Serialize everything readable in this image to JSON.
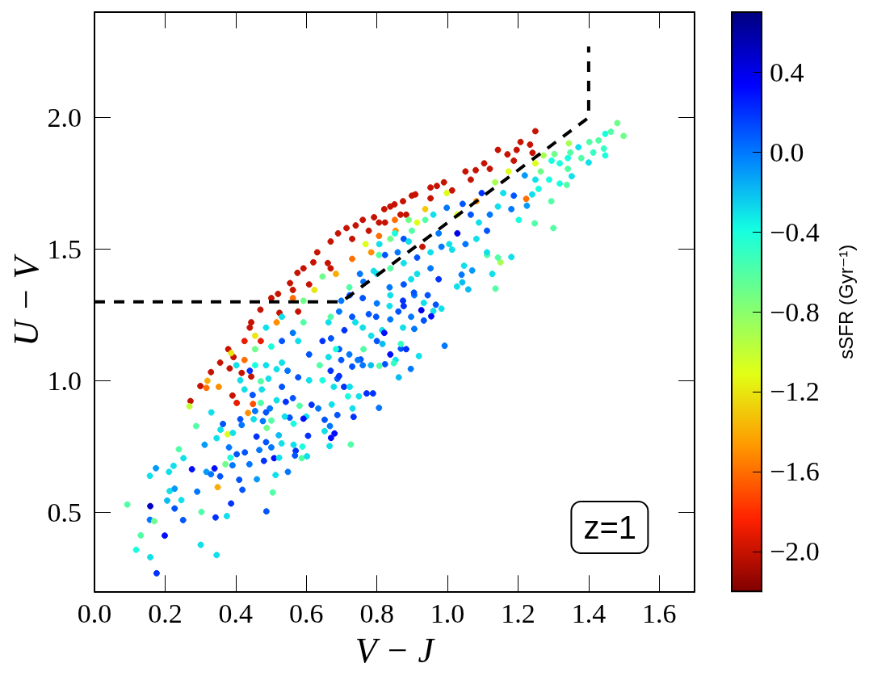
{
  "chart_data": {
    "type": "scatter",
    "xlabel": "V − J",
    "ylabel": "U − V",
    "clabel": "sSFR (Gyr⁻¹)",
    "annotations": [
      "z=1"
    ],
    "xlim": [
      0,
      1.7
    ],
    "ylim": [
      0.2,
      2.4
    ],
    "xticks": [
      {
        "value": 0,
        "label": "0.0"
      },
      {
        "value": 0.2,
        "label": "0.2"
      },
      {
        "value": 0.4,
        "label": "0.4"
      },
      {
        "value": 0.6,
        "label": "0.6"
      },
      {
        "value": 0.8,
        "label": "0.8"
      },
      {
        "value": 1.0,
        "label": "1.0"
      },
      {
        "value": 1.2,
        "label": "1.2"
      },
      {
        "value": 1.4,
        "label": "1.4"
      },
      {
        "value": 1.6,
        "label": "1.6"
      }
    ],
    "yticks": [
      {
        "value": 0.5,
        "label": "0.5"
      },
      {
        "value": 1.0,
        "label": "1.0"
      },
      {
        "value": 1.5,
        "label": "1.5"
      },
      {
        "value": 2.0,
        "label": "2.0"
      }
    ],
    "clim": [
      -2.2,
      0.7
    ],
    "cticks": [
      {
        "value": -2.0,
        "label": "−2.0"
      },
      {
        "value": -1.6,
        "label": "−1.6"
      },
      {
        "value": -1.2,
        "label": "−1.2"
      },
      {
        "value": -0.8,
        "label": "−0.8"
      },
      {
        "value": -0.4,
        "label": "−0.4"
      },
      {
        "value": 0,
        "label": "0.0"
      },
      {
        "value": 0.4,
        "label": "0.4"
      }
    ],
    "marker": "circle",
    "series": [
      {
        "x": [
          0.33,
          0.379,
          0.444,
          0.501,
          0.554,
          0.592,
          0.631,
          0.669,
          0.714,
          0.76,
          0.821,
          0.874,
          0.909,
          0.524,
          0.608,
          0.661,
          0.73,
          0.806,
          0.867,
          0.44,
          0.394,
          0.356,
          1.249,
          1.207,
          1.234,
          1.196,
          1.143,
          1.104,
          1.051,
          0.99,
          0.952,
          0.899,
          0.838,
          0.792,
          1.188,
          1.12,
          1.066,
          1.013,
          0.952,
          0.883,
          0.823,
          0.777,
          1.241,
          0.272,
          0.417,
          0.383,
          0.391,
          0.444,
          0.403,
          0.449,
          0.929,
          0.669,
          0.471,
          0.425,
          0.577,
          0.562,
          0.47,
          0.575,
          0.69,
          0.85,
          0.97,
          1.08,
          1.17,
          0.62,
          0.74,
          0.52,
          0.3,
          0.317,
          0.32,
          0.352,
          0.435,
          0.269,
          0.349,
          0.377,
          1.249,
          1.223,
          1.344,
          1.272,
          1.15,
          0.914,
          0.853,
          0.784,
          1.028,
          1.082,
          1.135,
          1.173,
          0.998,
          0.937,
          0.851,
          0.806,
          0.768,
          0.73,
          0.684,
          0.623,
          0.562,
          0.516,
          0.425,
          0.455,
          0.387,
          0.093,
          0.118,
          0.131,
          0.158,
          0.176,
          0.158,
          0.157,
          0.169,
          0.199,
          0.157,
          0.174,
          0.206,
          0.213,
          0.227,
          0.227,
          0.246,
          0.251,
          0.211,
          0.224,
          0.252,
          0.239,
          0.288,
          0.276,
          0.291,
          0.303,
          0.301,
          0.312,
          0.331,
          0.317,
          0.33,
          0.343,
          0.346,
          0.34,
          0.356,
          0.375,
          0.387,
          0.41,
          0.419,
          0.371,
          0.391,
          0.385,
          0.381,
          0.346,
          0.357,
          0.364,
          0.392,
          0.403,
          0.417,
          0.413,
          0.426,
          0.439,
          0.451,
          0.459,
          0.46,
          0.467,
          0.48,
          0.487,
          0.488,
          0.477,
          0.486,
          0.501,
          0.509,
          0.513,
          0.505,
          0.522,
          0.53,
          0.523,
          0.548,
          0.564,
          0.57,
          0.568,
          0.587,
          0.589,
          0.602,
          0.605,
          0.652,
          0.667,
          0.67,
          0.68,
          0.666,
          0.726,
          0.688,
          0.734,
          0.806,
          0.789,
          0.771,
          0.749,
          0.862,
          0.896,
          0.919,
          0.853,
          0.823,
          0.783,
          0.807,
          0.76,
          0.754,
          0.718,
          0.707,
          0.688,
          0.672,
          0.652,
          0.634,
          0.615,
          0.6,
          0.592,
          0.564,
          0.553,
          0.539,
          0.542,
          0.562,
          0.581,
          0.516,
          0.497,
          0.486,
          0.501,
          0.471,
          0.474,
          0.455,
          0.448,
          0.425,
          0.413,
          0.471,
          0.493,
          0.531,
          0.577,
          0.608,
          0.646,
          0.669,
          0.638,
          0.547,
          0.516,
          0.486,
          0.455,
          0.44,
          0.699,
          0.73,
          1.181,
          1.143,
          1.127,
          1.136,
          1.059,
          1.07,
          1.042,
          1.027,
          1.04,
          1.112,
          1.047,
          0.992,
          0.983,
          0.967,
          0.96,
          0.954,
          0.926,
          0.933,
          0.906,
          0.868,
          0.883,
          0.838,
          0.848,
          0.816,
          0.868,
          0.975,
          0.944,
          0.933,
          0.906,
          0.876,
          0.861,
          0.838,
          0.815,
          0.8,
          0.784,
          0.762,
          0.746,
          0.693,
          0.678,
          0.723,
          0.731,
          0.762,
          0.8,
          0.838,
          0.876,
          0.914,
          0.952,
          0.983,
          1.013,
          0.723,
          0.693,
          0.663,
          0.67,
          0.708,
          0.739,
          0.777,
          0.8,
          0.838,
          0.876,
          0.914,
          0.952,
          0.693,
          0.663,
          1.481,
          1.499,
          1.463,
          1.447,
          1.428,
          1.402,
          1.443,
          1.413,
          1.447,
          1.4,
          1.371,
          1.348,
          1.379,
          1.341,
          1.303,
          1.318,
          1.341,
          1.352,
          1.318,
          1.338,
          1.295,
          1.264,
          1.288,
          1.249,
          1.219,
          1.225,
          1.24,
          1.258,
          1.294,
          1.247,
          1.3,
          1.202,
          1.181,
          1.188,
          1.158,
          1.143,
          1.12,
          1.112,
          1.089,
          1.066,
          1.082,
          1.028,
          1.051,
          1.005,
          1.112,
          1.043,
          0.998,
          0.96,
          0.937,
          0.899,
          0.876,
          0.838,
          0.807,
          0.823,
          0.975,
          1.097,
          0.89,
          0.851,
          0.89,
          0.859,
          0.806,
          0.752,
          0.791,
          0.897,
          0.836,
          0.76,
          0.722,
          0.646,
          0.592,
          0.531,
          0.486,
          0.455,
          0.501,
          0.531,
          0.562,
          0.592,
          0.577,
          0.608,
          0.646,
          0.669,
          0.699,
          0.73,
          0.76,
          0.798,
          0.836,
          0.874,
          0.905,
          0.722,
          0.684,
          0.821,
          0.874,
          0.897,
          0.531,
          0.402
        ],
        "values": [
          1.033,
          1.12,
          1.222,
          1.314,
          1.371,
          1.427,
          1.488,
          1.529,
          1.58,
          1.611,
          1.652,
          1.682,
          1.708,
          1.258,
          1.366,
          1.447,
          1.539,
          1.601,
          1.631,
          1.202,
          1.09,
          1.069,
          1.948,
          1.907,
          1.897,
          1.877,
          1.877,
          1.826,
          1.795,
          1.754,
          1.734,
          1.703,
          1.662,
          1.621,
          1.836,
          1.805,
          1.764,
          1.723,
          1.693,
          1.631,
          1.601,
          1.57,
          1.866,
          0.923,
          1.03,
          1.047,
          0.944,
          1.016,
          0.916,
          0.912,
          1.509,
          1.427,
          1.151,
          1.151,
          1.263,
          1.345,
          1.27,
          1.41,
          1.56,
          1.67,
          1.74,
          1.8,
          1.86,
          1.45,
          1.59,
          1.33,
          0.98,
          0.973,
          1.0,
          0.977,
          0.878,
          0.903,
          0.596,
          0.797,
          1.826,
          1.691,
          1.902,
          1.856,
          1.45,
          1.601,
          1.57,
          1.488,
          1.631,
          1.682,
          1.754,
          1.795,
          1.713,
          1.652,
          1.611,
          1.55,
          1.519,
          1.463,
          1.406,
          1.345,
          1.314,
          1.222,
          1.079,
          1.171,
          1.105,
          0.53,
          0.358,
          0.413,
          0.33,
          0.269,
          0.524,
          0.472,
          0.467,
          0.412,
          0.639,
          0.668,
          0.545,
          0.581,
          0.59,
          0.515,
          0.547,
          0.471,
          0.654,
          0.677,
          0.706,
          0.74,
          0.828,
          0.664,
          0.579,
          0.502,
          0.377,
          0.757,
          0.88,
          0.654,
          0.645,
          0.481,
          0.338,
          0.667,
          0.637,
          0.486,
          0.534,
          0.624,
          0.586,
          0.683,
          0.679,
          0.708,
          0.747,
          0.782,
          0.814,
          0.836,
          0.802,
          0.721,
          0.832,
          0.854,
          0.728,
          0.683,
          0.854,
          0.788,
          0.626,
          0.737,
          0.696,
          0.504,
          0.821,
          0.847,
          0.767,
          0.747,
          0.706,
          0.642,
          0.576,
          0.793,
          0.762,
          0.708,
          0.654,
          0.757,
          0.734,
          0.716,
          0.706,
          0.75,
          0.713,
          0.791,
          0.809,
          0.828,
          0.783,
          0.8,
          0.752,
          0.758,
          0.87,
          0.863,
          0.897,
          0.952,
          0.952,
          0.941,
          1.013,
          1.045,
          1.094,
          1.079,
          1.063,
          1.059,
          1.057,
          1.059,
          1.081,
          0.941,
          0.977,
          1.008,
          0.91,
          0.852,
          0.895,
          0.909,
          0.864,
          0.856,
          0.837,
          0.86,
          0.864,
          0.92,
          0.934,
          0.905,
          0.926,
          0.895,
          0.88,
          0.849,
          0.916,
          0.967,
          0.885,
          0.946,
          0.967,
          1.002,
          0.998,
          1.008,
          0.977,
          1.013,
          1.002,
          1.002,
          1.038,
          1.059,
          1.038,
          1.044,
          1.059,
          1.059,
          1.038,
          1.079,
          1.054,
          1.47,
          1.468,
          1.406,
          1.35,
          1.347,
          1.419,
          1.374,
          1.358,
          1.403,
          1.478,
          1.437,
          1.133,
          1.274,
          1.289,
          1.265,
          1.245,
          1.268,
          1.229,
          1.197,
          1.122,
          1.12,
          1.1,
          1.067,
          1.14,
          1.14,
          1.386,
          1.325,
          1.296,
          1.325,
          1.284,
          1.263,
          1.233,
          1.192,
          1.151,
          1.171,
          1.12,
          1.079,
          1.018,
          0.977,
          0.977,
          0.895,
          1.376,
          1.406,
          1.427,
          1.447,
          1.468,
          1.488,
          1.509,
          1.498,
          1.325,
          1.263,
          1.222,
          1.161,
          1.192,
          1.222,
          1.253,
          1.294,
          1.325,
          1.366,
          1.406,
          1.427,
          1.12,
          1.09,
          1.979,
          1.93,
          1.946,
          1.938,
          1.913,
          1.907,
          1.882,
          1.867,
          1.856,
          1.829,
          1.887,
          1.867,
          1.846,
          1.846,
          1.861,
          1.826,
          1.805,
          1.777,
          1.749,
          1.744,
          1.836,
          1.795,
          1.764,
          1.764,
          1.78,
          1.665,
          1.708,
          1.729,
          1.682,
          1.598,
          1.58,
          1.611,
          1.652,
          1.703,
          1.713,
          1.662,
          1.631,
          1.57,
          1.601,
          1.631,
          1.539,
          1.56,
          1.519,
          1.519,
          1.488,
          1.672,
          1.657,
          1.631,
          1.611,
          1.57,
          1.539,
          1.539,
          1.519,
          1.478,
          1.56,
          1.713,
          1.611,
          1.56,
          1.529,
          1.488,
          1.478,
          1.406,
          1.417,
          1.386,
          1.355,
          1.314,
          1.355,
          1.396,
          1.304,
          1.243,
          1.202,
          1.12,
          1.13,
          1.151,
          1.182,
          1.222,
          1.151,
          1.1,
          1.151,
          1.243,
          1.304,
          1.243,
          1.202,
          1.243,
          1.284,
          1.304,
          1.335,
          1.1,
          1.12,
          1.182,
          1.202,
          1.243,
          1.069,
          1.059
        ],
        "cvalues": [
          -2.0,
          -2.0,
          -2.0,
          -2.0,
          -2.0,
          -2.0,
          -2.0,
          -2.0,
          -2.0,
          -2.0,
          -2.0,
          -2.0,
          -2.0,
          -2.0,
          -2.0,
          -2.0,
          -2.0,
          -2.0,
          -2.0,
          -2.0,
          -2.0,
          -2.0,
          -2.0,
          -2.0,
          -2.0,
          -2.0,
          -2.0,
          -2.0,
          -2.0,
          -2.0,
          -2.0,
          -2.0,
          -2.0,
          -2.0,
          -2.0,
          -2.0,
          -2.0,
          -2.0,
          -2.0,
          -2.0,
          -2.0,
          -2.0,
          -2.0,
          -2.0,
          -2.0,
          -2.0,
          -2.0,
          -2.0,
          -1.9,
          -1.7,
          -2.0,
          -2.0,
          -1.9,
          -1.9,
          -2.0,
          -2.0,
          -2.0,
          -2.0,
          -2.0,
          -2.0,
          -2.0,
          -2.0,
          -2.0,
          -2.0,
          -2.0,
          -2.0,
          -2.0,
          -1.6,
          -1.4,
          -1.5,
          -1.5,
          -1.0,
          -1.4,
          -1.1,
          -1.1,
          -1.6,
          -0.9,
          -0.9,
          -0.9,
          -1.1,
          -1.5,
          -1.5,
          -1.1,
          -1.5,
          -0.9,
          -1.1,
          -1.1,
          -1.3,
          -1.6,
          -1.6,
          -1.1,
          -1.6,
          -1.4,
          -1.2,
          -1.6,
          -1.5,
          -1.6,
          -1.2,
          -1.2,
          -0.6,
          -0.4,
          -0.6,
          -0.3,
          0.2,
          0.5,
          0.0,
          -0.7,
          0.3,
          -0.3,
          -0.1,
          -0.2,
          -0.3,
          -0.1,
          0.1,
          -0.3,
          0.1,
          -0.3,
          -0.3,
          -0.3,
          -0.6,
          -0.6,
          0.3,
          0.0,
          -0.6,
          -0.3,
          -0.1,
          -0.3,
          -0.1,
          0.0,
          0.2,
          -0.3,
          0.3,
          0.1,
          -0.3,
          0.2,
          0.1,
          0.1,
          -0.7,
          0.0,
          -0.4,
          0.0,
          -0.3,
          -0.3,
          0.1,
          -0.3,
          0.1,
          0.0,
          0.1,
          0.1,
          0.0,
          -0.3,
          0.2,
          -0.1,
          0.0,
          0.2,
          0.1,
          -0.7,
          0.0,
          0.1,
          0.0,
          0.3,
          -0.3,
          -0.6,
          -0.2,
          -0.3,
          -0.3,
          0.0,
          -0.3,
          0.2,
          0.1,
          -0.6,
          -0.4,
          -0.3,
          0.2,
          -0.3,
          0.0,
          0.3,
          0.3,
          -0.3,
          -0.6,
          0.1,
          0.2,
          0.0,
          0.2,
          0.2,
          -0.3,
          -0.2,
          0.0,
          -0.3,
          -0.3,
          0.1,
          -0.2,
          -0.6,
          0.0,
          0.1,
          -0.4,
          0.2,
          0.1,
          -0.3,
          0.1,
          0.0,
          0.2,
          -0.3,
          0.3,
          -0.4,
          0.1,
          -0.3,
          0.2,
          0.1,
          -0.6,
          -0.3,
          0.0,
          0.1,
          -0.6,
          -0.6,
          -0.3,
          0.0,
          0.1,
          -0.3,
          -0.3,
          -0.6,
          -0.3,
          0.1,
          0.1,
          -0.3,
          -0.4,
          0.2,
          -0.6,
          0.0,
          -0.3,
          -0.3,
          -0.4,
          0.2,
          0.1,
          0.1,
          -0.3,
          -0.6,
          -0.3,
          -0.6,
          -0.2,
          -0.1,
          -0.2,
          -0.3,
          0.0,
          -0.6,
          -0.3,
          0.0,
          -0.3,
          0.1,
          -0.3,
          0.3,
          0.4,
          0.1,
          0.0,
          0.1,
          0.2,
          0.3,
          -0.5,
          -0.2,
          -0.5,
          0.2,
          0.1,
          -0.3,
          0.0,
          0.2,
          0.1,
          0.0,
          -0.3,
          0.1,
          -0.3,
          -0.6,
          0.0,
          0.2,
          -0.3,
          -0.3,
          -0.3,
          0.0,
          -0.3,
          -0.6,
          -0.3,
          0.1,
          -0.3,
          0.0,
          -0.3,
          0.1,
          0.0,
          -0.3,
          0.1,
          0.2,
          -0.3,
          0.1,
          0.0,
          -0.3,
          0.1,
          -0.3,
          0.0,
          0.1,
          -0.3,
          -0.7,
          -0.7,
          -0.6,
          -0.4,
          -0.6,
          -0.6,
          -0.5,
          -0.5,
          -0.4,
          -0.3,
          -0.3,
          -0.6,
          -0.6,
          -0.4,
          -0.7,
          -0.4,
          -0.6,
          -0.3,
          -0.4,
          -0.6,
          -0.4,
          -0.7,
          -0.4,
          -0.3,
          -0.1,
          -0.1,
          -0.3,
          -0.4,
          -0.6,
          -0.6,
          -0.6,
          -0.4,
          0.0,
          0.1,
          -0.3,
          -0.3,
          0.0,
          0.1,
          -0.3,
          0.1,
          -0.3,
          0.4,
          0.0,
          -0.3,
          -0.3,
          0.1,
          0.0,
          -0.3,
          -0.6,
          -0.6,
          0.1,
          -0.7,
          -0.3,
          0.1,
          0.0,
          0.2,
          -0.7,
          -0.4,
          -0.3,
          0.0,
          -0.6,
          0.0,
          -0.3,
          -0.3,
          0.0,
          0.1,
          -0.6,
          -0.7,
          -0.7,
          -0.3,
          -0.3,
          -0.7,
          -0.4,
          0.1,
          0.0,
          -0.6,
          -0.3,
          0.1,
          0.2,
          -0.6,
          0.0,
          0.1,
          -0.3,
          0.1,
          -0.3,
          0.2,
          0.1,
          0.0,
          -0.4,
          0.3,
          -0.3,
          0.0,
          -0.3,
          -0.3
        ],
        "colors": [
          "#c61200",
          "#c61200",
          "#c61200",
          "#c61200",
          "#c61200",
          "#c61200",
          "#c61200",
          "#c61200",
          "#c61200",
          "#c61200",
          "#c61200",
          "#c61200",
          "#c61200",
          "#c61200",
          "#c61200",
          "#c61200",
          "#c61200",
          "#c61200",
          "#c61200",
          "#c61200",
          "#c61200",
          "#c61200",
          "#c61200",
          "#c61200",
          "#c61200",
          "#c61200",
          "#c61200",
          "#c61200",
          "#c61200",
          "#c61200",
          "#c61200",
          "#c61200",
          "#c61200",
          "#c61200",
          "#c61200",
          "#c61200",
          "#c61200",
          "#c61200",
          "#c61200",
          "#c61200",
          "#c61200",
          "#c61200",
          "#c61200",
          "#c61200",
          "#c61200",
          "#c61200",
          "#c61200",
          "#c61200",
          "#e91b00",
          "#ff4e00",
          "#c61200",
          "#c61200",
          "#e91b00",
          "#e91b00",
          "#c61200",
          "#c61200",
          "#c61200",
          "#c61200",
          "#c61200",
          "#c61200",
          "#c61200",
          "#c61200",
          "#c61200",
          "#c61200",
          "#c61200",
          "#c61200",
          "#c61200",
          "#ff6e00",
          "#f9ad04",
          "#ff8f00",
          "#ff8f00",
          "#c2ff35",
          "#f9ad04",
          "#deff19",
          "#deff19",
          "#ff6e00",
          "#a6ff51",
          "#a6ff51",
          "#a6ff51",
          "#deff19",
          "#ff8f00",
          "#ff8f00",
          "#deff19",
          "#ff8f00",
          "#a6ff51",
          "#deff19",
          "#deff19",
          "#f1c90a",
          "#ff6e00",
          "#ff6e00",
          "#deff19",
          "#ff6e00",
          "#f9ad04",
          "#e9e610",
          "#ff6e00",
          "#ff8f00",
          "#ff6e00",
          "#e9e610",
          "#e9e610",
          "#50ffa6",
          "#18ffde",
          "#50ffa6",
          "#0fe0e9",
          "#0031ff",
          "#0000c6",
          "#0077ff",
          "#6dff89",
          "#000dff",
          "#0fe0e9",
          "#049af9",
          "#0abdf1",
          "#0fe0e9",
          "#049af9",
          "#0054ff",
          "#0fe0e9",
          "#0054ff",
          "#0fe0e9",
          "#0fe0e9",
          "#0fe0e9",
          "#50ffa6",
          "#50ffa6",
          "#000dff",
          "#0077ff",
          "#50ffa6",
          "#0fe0e9",
          "#049af9",
          "#0fe0e9",
          "#049af9",
          "#0077ff",
          "#0031ff",
          "#0fe0e9",
          "#000dff",
          "#0054ff",
          "#0fe0e9",
          "#0031ff",
          "#0054ff",
          "#0054ff",
          "#6dff89",
          "#0077ff",
          "#18ffde",
          "#0077ff",
          "#0fe0e9",
          "#0fe0e9",
          "#0054ff",
          "#0fe0e9",
          "#0054ff",
          "#0077ff",
          "#0054ff",
          "#0054ff",
          "#0077ff",
          "#0fe0e9",
          "#0031ff",
          "#049af9",
          "#0077ff",
          "#0031ff",
          "#0054ff",
          "#6dff89",
          "#0077ff",
          "#0054ff",
          "#0077ff",
          "#000dff",
          "#0fe0e9",
          "#50ffa6",
          "#0abdf1",
          "#0fe0e9",
          "#0fe0e9",
          "#0077ff",
          "#0fe0e9",
          "#0031ff",
          "#0054ff",
          "#50ffa6",
          "#18ffde",
          "#0fe0e9",
          "#0031ff",
          "#0fe0e9",
          "#0077ff",
          "#000dff",
          "#000dff",
          "#0fe0e9",
          "#50ffa6",
          "#0054ff",
          "#0031ff",
          "#0077ff",
          "#0031ff",
          "#0031ff",
          "#0fe0e9",
          "#0abdf1",
          "#0077ff",
          "#0fe0e9",
          "#0fe0e9",
          "#0054ff",
          "#0abdf1",
          "#50ffa6",
          "#0077ff",
          "#0054ff",
          "#18ffde",
          "#0031ff",
          "#0054ff",
          "#0fe0e9",
          "#0054ff",
          "#0077ff",
          "#0031ff",
          "#0fe0e9",
          "#000dff",
          "#18ffde",
          "#0054ff",
          "#0fe0e9",
          "#0031ff",
          "#0054ff",
          "#50ffa6",
          "#0fe0e9",
          "#0077ff",
          "#0054ff",
          "#50ffa6",
          "#50ffa6",
          "#0fe0e9",
          "#0077ff",
          "#0054ff",
          "#0fe0e9",
          "#0fe0e9",
          "#50ffa6",
          "#0fe0e9",
          "#0054ff",
          "#0054ff",
          "#0fe0e9",
          "#18ffde",
          "#0031ff",
          "#50ffa6",
          "#0077ff",
          "#0fe0e9",
          "#0fe0e9",
          "#18ffde",
          "#0031ff",
          "#0054ff",
          "#0054ff",
          "#0fe0e9",
          "#50ffa6",
          "#0fe0e9",
          "#50ffa6",
          "#0abdf1",
          "#049af9",
          "#0abdf1",
          "#0fe0e9",
          "#0077ff",
          "#50ffa6",
          "#0fe0e9",
          "#0077ff",
          "#0fe0e9",
          "#0054ff",
          "#0fe0e9",
          "#000dff",
          "#0000e9",
          "#0054ff",
          "#0077ff",
          "#0054ff",
          "#0031ff",
          "#000dff",
          "#34ffc2",
          "#0abdf1",
          "#34ffc2",
          "#0031ff",
          "#0054ff",
          "#0fe0e9",
          "#0077ff",
          "#0031ff",
          "#0054ff",
          "#0077ff",
          "#0fe0e9",
          "#0054ff",
          "#0fe0e9",
          "#50ffa6",
          "#0077ff",
          "#0031ff",
          "#0fe0e9",
          "#0fe0e9",
          "#0fe0e9",
          "#0077ff",
          "#0fe0e9",
          "#50ffa6",
          "#0fe0e9",
          "#0054ff",
          "#0fe0e9",
          "#0077ff",
          "#0fe0e9",
          "#0054ff",
          "#0077ff",
          "#0fe0e9",
          "#0054ff",
          "#0031ff",
          "#0fe0e9",
          "#0054ff",
          "#0077ff",
          "#0fe0e9",
          "#0054ff",
          "#0fe0e9",
          "#0077ff",
          "#0054ff",
          "#0fe0e9",
          "#6dff89",
          "#6dff89",
          "#50ffa6",
          "#18ffde",
          "#50ffa6",
          "#50ffa6",
          "#34ffc2",
          "#34ffc2",
          "#18ffde",
          "#0fe0e9",
          "#0fe0e9",
          "#50ffa6",
          "#50ffa6",
          "#18ffde",
          "#6dff89",
          "#18ffde",
          "#50ffa6",
          "#0fe0e9",
          "#18ffde",
          "#50ffa6",
          "#18ffde",
          "#6dff89",
          "#18ffde",
          "#0fe0e9",
          "#049af9",
          "#049af9",
          "#0fe0e9",
          "#18ffde",
          "#50ffa6",
          "#50ffa6",
          "#50ffa6",
          "#18ffde",
          "#0077ff",
          "#0054ff",
          "#0fe0e9",
          "#0fe0e9",
          "#0077ff",
          "#0054ff",
          "#0fe0e9",
          "#0054ff",
          "#0fe0e9",
          "#0000e9",
          "#0077ff",
          "#0fe0e9",
          "#0fe0e9",
          "#0054ff",
          "#0077ff",
          "#0fe0e9",
          "#50ffa6",
          "#50ffa6",
          "#0054ff",
          "#6dff89",
          "#0fe0e9",
          "#0054ff",
          "#0077ff",
          "#0031ff",
          "#6dff89",
          "#18ffde",
          "#0fe0e9",
          "#0077ff",
          "#50ffa6",
          "#0077ff",
          "#0fe0e9",
          "#0fe0e9",
          "#0077ff",
          "#0054ff",
          "#50ffa6",
          "#6dff89",
          "#6dff89",
          "#0fe0e9",
          "#0fe0e9",
          "#6dff89",
          "#18ffde",
          "#0054ff",
          "#0077ff",
          "#50ffa6",
          "#0fe0e9",
          "#0054ff",
          "#0031ff",
          "#50ffa6",
          "#0077ff",
          "#0054ff",
          "#0fe0e9",
          "#0054ff",
          "#0fe0e9",
          "#0031ff",
          "#0054ff",
          "#0077ff",
          "#18ffde",
          "#000dff",
          "#0fe0e9",
          "#0077ff",
          "#0fe0e9",
          "#0fe0e9"
        ]
      },
      {
        "type": "line",
        "x": [
          0,
          0.7,
          1.4,
          1.4
        ],
        "values": [
          1.3,
          1.3,
          2.0,
          2.27
        ],
        "color": "#000000",
        "line_style": "dashed",
        "marker": "none"
      }
    ]
  }
}
